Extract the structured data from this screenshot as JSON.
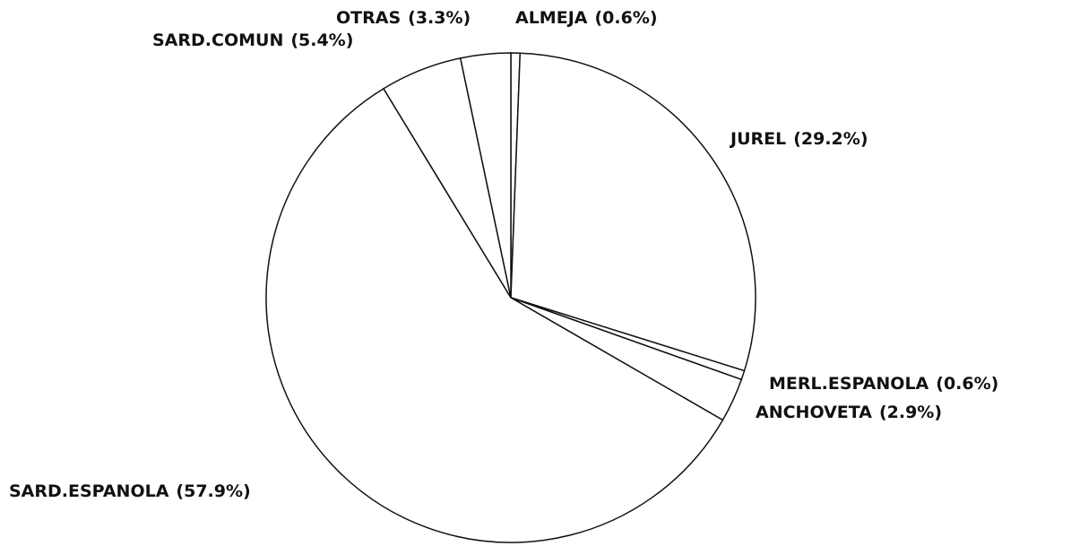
{
  "chart_data": {
    "type": "pie",
    "categories": [
      "ALMEJA",
      "JUREL",
      "MERL.ESPANOLA",
      "ANCHOVETA",
      "SARD.ESPANOLA",
      "SARD.COMUN",
      "OTRAS"
    ],
    "values": [
      0.6,
      29.2,
      0.6,
      2.9,
      57.9,
      5.4,
      3.3
    ],
    "value_labels": [
      "(0.6%)",
      "(29.2%)",
      "(0.6%)",
      "(2.9%)",
      "(57.9%)",
      "(5.4%)",
      "(3.3%)"
    ],
    "color": "#ffffff"
  }
}
